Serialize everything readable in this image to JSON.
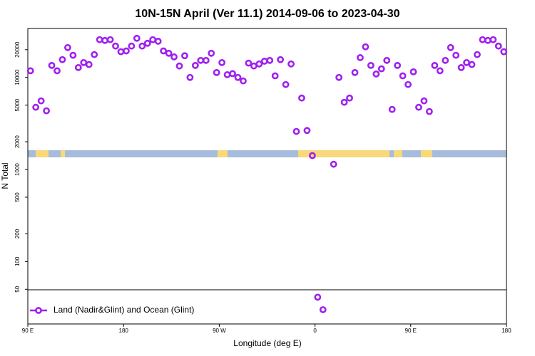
{
  "chart_data": {
    "type": "scatter",
    "title": "10N-15N April (Ver 11.1)   2014-09-06 to 2023-04-30",
    "x_label": "Longitude (deg E)",
    "y_label": "N Total",
    "log_y": true,
    "legend": "bottom-left",
    "xlim": [
      90,
      540
    ],
    "ylim": [
      21,
      34000
    ],
    "xticks": [
      {
        "value": 90,
        "label": "90 E"
      },
      180,
      {
        "value": 270,
        "label": "90 W"
      },
      {
        "value": 360,
        "label": "0"
      },
      {
        "value": 450,
        "label": "90 E"
      },
      {
        "value": 540,
        "label": "180"
      }
    ],
    "yticks": [
      50,
      100,
      200,
      500,
      1000,
      2000,
      5000,
      10000,
      20000
    ],
    "series": [
      {
        "name": "Land (Nadir&Glint) and Ocean (Glint)",
        "color": "#a020f0",
        "x": [
          92.5,
          97.5,
          102.5,
          107.5,
          112.5,
          117.5,
          122.5,
          127.5,
          132.5,
          137.5,
          142.5,
          147.5,
          152.5,
          157.5,
          162.5,
          167.5,
          172.5,
          177.5,
          182.5,
          187.5,
          192.5,
          197.5,
          202.5,
          207.5,
          212.5,
          217.5,
          222.5,
          227.5,
          232.5,
          237.5,
          242.5,
          247.5,
          252.5,
          257.5,
          262.5,
          267.5,
          272.5,
          277.5,
          282.5,
          287.5,
          292.5,
          297.5,
          302.5,
          307.5,
          312.5,
          317.5,
          322.5,
          327.5,
          332.5,
          337.5,
          342.5,
          347.5,
          352.5,
          357.5,
          362.5,
          367.5,
          377.5,
          382.5,
          387.5,
          392.5,
          397.5,
          402.5,
          407.5,
          412.5,
          417.5,
          422.5,
          427.5,
          432.5,
          437.5,
          442.5,
          447.5,
          452.5,
          457.5,
          462.5,
          467.5,
          472.5,
          477.5,
          482.5,
          487.5,
          492.5,
          497.5,
          502.5,
          507.5,
          512.5,
          517.5,
          522.5,
          527.5,
          532.5,
          537.5
        ],
        "values": [
          11800,
          4740,
          5560,
          4340,
          13500,
          11800,
          15600,
          21100,
          17400,
          12800,
          14500,
          13800,
          17700,
          25700,
          25200,
          25700,
          21900,
          19000,
          19400,
          21900,
          26600,
          21900,
          23500,
          25700,
          24700,
          19400,
          18300,
          16700,
          13300,
          17200,
          10000,
          13500,
          15300,
          15300,
          18300,
          11300,
          14500,
          10700,
          11000,
          10000,
          9160,
          14300,
          13300,
          14000,
          15000,
          15300,
          10400,
          15600,
          8370,
          14000,
          2590,
          5970,
          2650,
          1415,
          41,
          30,
          1140,
          10000,
          5370,
          5970,
          11300,
          16400,
          21500,
          13500,
          10900,
          12400,
          15300,
          4490,
          13500,
          10400,
          8370,
          11500,
          4740,
          5560,
          4260,
          13500,
          11800,
          15300,
          21100,
          17400,
          12800,
          14500,
          13800,
          17700,
          25700,
          25200,
          25700,
          21900,
          19000
        ]
      }
    ]
  }
}
